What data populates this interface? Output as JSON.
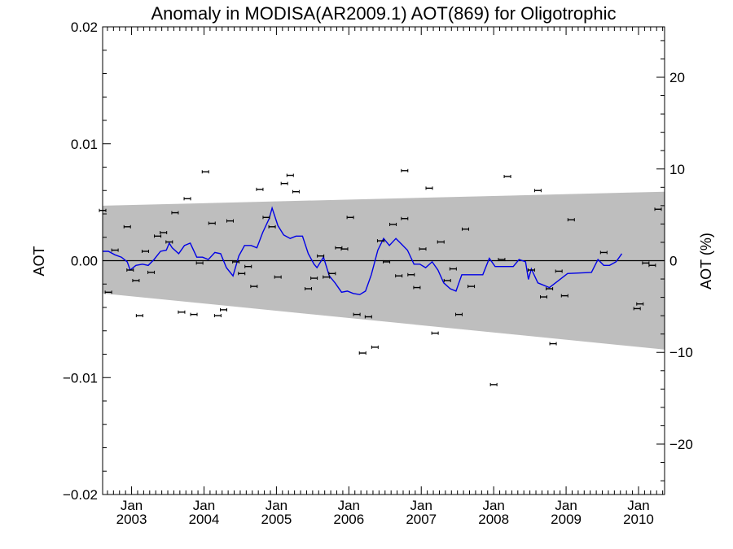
{
  "chart_data": {
    "type": "scatter",
    "title": "Anomaly in MODISA(AR2009.1) AOT(869) for Oligotrophic",
    "ylabel": "AOT",
    "y2label": "AOT (%)",
    "xlabel": "",
    "xlim": [
      2002.6,
      2010.36
    ],
    "ylim": [
      -0.02,
      0.02
    ],
    "y2lim": [
      -25.5,
      25.5
    ],
    "yticks": [
      {
        "value": -0.02,
        "label": "−0.02"
      },
      {
        "value": -0.01,
        "label": "−0.01"
      },
      {
        "value": 0.0,
        "label": "0.00"
      },
      {
        "value": 0.01,
        "label": "0.01"
      },
      {
        "value": 0.02,
        "label": "0.02"
      }
    ],
    "y2ticks": [
      {
        "value": -20,
        "label": "−20"
      },
      {
        "value": -10,
        "label": "−10"
      },
      {
        "value": 0,
        "label": "0"
      },
      {
        "value": 10,
        "label": "10"
      },
      {
        "value": 20,
        "label": "20"
      }
    ],
    "xticks": [
      {
        "value": 2003.0,
        "month": "Jan",
        "year": "2003"
      },
      {
        "value": 2004.0,
        "month": "Jan",
        "year": "2004"
      },
      {
        "value": 2005.0,
        "month": "Jan",
        "year": "2005"
      },
      {
        "value": 2006.0,
        "month": "Jan",
        "year": "2006"
      },
      {
        "value": 2007.0,
        "month": "Jan",
        "year": "2007"
      },
      {
        "value": 2008.0,
        "month": "Jan",
        "year": "2008"
      },
      {
        "value": 2009.0,
        "month": "Jan",
        "year": "2009"
      },
      {
        "value": 2010.0,
        "month": "Jan",
        "year": "2010"
      }
    ],
    "band": {
      "color": "#bebebe",
      "x": [
        2002.6,
        2010.36
      ],
      "upper": [
        0.0047,
        0.0059
      ],
      "lower": [
        -0.0028,
        -0.0076
      ]
    },
    "zero_line_color": "#000000",
    "series": [
      {
        "kind": "points",
        "color": "#000000",
        "points": [
          [
            2002.6,
            0.0043
          ],
          [
            2002.68,
            -0.0027
          ],
          [
            2002.77,
            0.0009
          ],
          [
            2002.94,
            0.0029
          ],
          [
            2002.98,
            -0.0008
          ],
          [
            2003.06,
            -0.0017
          ],
          [
            2003.11,
            -0.0047
          ],
          [
            2003.19,
            0.0008
          ],
          [
            2003.27,
            -0.001
          ],
          [
            2003.36,
            0.0021
          ],
          [
            2003.44,
            0.0024
          ],
          [
            2003.52,
            0.0016
          ],
          [
            2003.6,
            0.0041
          ],
          [
            2003.69,
            -0.0044
          ],
          [
            2003.77,
            0.0053
          ],
          [
            2003.86,
            -0.0046
          ],
          [
            2003.94,
            -0.0002
          ],
          [
            2004.02,
            0.0076
          ],
          [
            2004.11,
            0.0032
          ],
          [
            2004.19,
            -0.0047
          ],
          [
            2004.27,
            -0.0042
          ],
          [
            2004.36,
            0.0034
          ],
          [
            2004.44,
            -0.0001
          ],
          [
            2004.52,
            -0.0011
          ],
          [
            2004.61,
            -0.0005
          ],
          [
            2004.69,
            -0.0022
          ],
          [
            2004.77,
            0.0061
          ],
          [
            2004.86,
            0.0037
          ],
          [
            2004.94,
            0.0029
          ],
          [
            2005.02,
            -0.0014
          ],
          [
            2005.11,
            0.0066
          ],
          [
            2005.19,
            0.0073
          ],
          [
            2005.27,
            0.0059
          ],
          [
            2005.44,
            -0.0024
          ],
          [
            2005.52,
            -0.0015
          ],
          [
            2005.61,
            0.0004
          ],
          [
            2005.69,
            -0.0014
          ],
          [
            2005.77,
            -0.0011
          ],
          [
            2005.86,
            0.0011
          ],
          [
            2005.94,
            0.001
          ],
          [
            2006.02,
            0.0037
          ],
          [
            2006.11,
            -0.0046
          ],
          [
            2006.19,
            -0.0079
          ],
          [
            2006.27,
            -0.0048
          ],
          [
            2006.36,
            -0.0074
          ],
          [
            2006.44,
            0.0017
          ],
          [
            2006.52,
            -0.0001
          ],
          [
            2006.61,
            0.0031
          ],
          [
            2006.69,
            -0.0013
          ],
          [
            2006.77,
            0.0036
          ],
          [
            2006.77,
            0.0077
          ],
          [
            2006.86,
            -0.0012
          ],
          [
            2006.94,
            -0.0023
          ],
          [
            2007.02,
            0.001
          ],
          [
            2007.11,
            0.0062
          ],
          [
            2007.19,
            -0.0062
          ],
          [
            2007.27,
            0.0016
          ],
          [
            2007.36,
            -0.0017
          ],
          [
            2007.44,
            -0.0007
          ],
          [
            2007.52,
            -0.0046
          ],
          [
            2007.61,
            0.0027
          ],
          [
            2007.69,
            -0.0022
          ],
          [
            2008.0,
            -0.0106
          ],
          [
            2008.11,
            0.0001
          ],
          [
            2008.19,
            0.0072
          ],
          [
            2008.52,
            -0.0008
          ],
          [
            2008.61,
            0.006
          ],
          [
            2008.69,
            -0.0031
          ],
          [
            2008.77,
            -0.0024
          ],
          [
            2008.82,
            -0.0071
          ],
          [
            2008.9,
            -0.0009
          ],
          [
            2008.98,
            -0.003
          ],
          [
            2009.07,
            0.0035
          ],
          [
            2009.52,
            0.0007
          ],
          [
            2009.98,
            -0.0041
          ],
          [
            2010.02,
            -0.0037
          ],
          [
            2010.1,
            -0.0002
          ],
          [
            2010.19,
            -0.0004
          ],
          [
            2010.27,
            0.0044
          ]
        ]
      },
      {
        "kind": "line",
        "color": "#0000e6",
        "points": [
          [
            2002.6,
            0.0008
          ],
          [
            2002.68,
            0.0008
          ],
          [
            2002.77,
            0.0005
          ],
          [
            2002.86,
            0.0003
          ],
          [
            2002.94,
            -0.0001
          ],
          [
            2002.98,
            -0.0008
          ],
          [
            2003.06,
            -0.0004
          ],
          [
            2003.15,
            -0.0003
          ],
          [
            2003.23,
            -0.0004
          ],
          [
            2003.31,
            0.0001
          ],
          [
            2003.4,
            0.0008
          ],
          [
            2003.48,
            0.0009
          ],
          [
            2003.52,
            0.0015
          ],
          [
            2003.56,
            0.0011
          ],
          [
            2003.65,
            0.0006
          ],
          [
            2003.73,
            0.0013
          ],
          [
            2003.81,
            0.0015
          ],
          [
            2003.9,
            0.0003
          ],
          [
            2003.98,
            0.0003
          ],
          [
            2004.06,
            0.0001
          ],
          [
            2004.15,
            0.0007
          ],
          [
            2004.23,
            0.0006
          ],
          [
            2004.31,
            -0.0006
          ],
          [
            2004.4,
            -0.0013
          ],
          [
            2004.48,
            0.0004
          ],
          [
            2004.56,
            0.0013
          ],
          [
            2004.65,
            0.0013
          ],
          [
            2004.73,
            0.0011
          ],
          [
            2004.81,
            0.0024
          ],
          [
            2004.9,
            0.0036
          ],
          [
            2004.94,
            0.0045
          ],
          [
            2005.02,
            0.003
          ],
          [
            2005.1,
            0.0022
          ],
          [
            2005.19,
            0.0019
          ],
          [
            2005.27,
            0.0021
          ],
          [
            2005.36,
            0.0021
          ],
          [
            2005.44,
            0.0006
          ],
          [
            2005.52,
            -0.0003
          ],
          [
            2005.56,
            -0.0006
          ],
          [
            2005.65,
            0.0003
          ],
          [
            2005.73,
            -0.0013
          ],
          [
            2005.81,
            -0.0019
          ],
          [
            2005.9,
            -0.0027
          ],
          [
            2005.98,
            -0.0026
          ],
          [
            2006.06,
            -0.0028
          ],
          [
            2006.15,
            -0.0029
          ],
          [
            2006.23,
            -0.0026
          ],
          [
            2006.31,
            -0.0012
          ],
          [
            2006.4,
            0.0009
          ],
          [
            2006.48,
            0.0019
          ],
          [
            2006.56,
            0.0013
          ],
          [
            2006.65,
            0.0019
          ],
          [
            2006.73,
            0.0014
          ],
          [
            2006.81,
            0.0009
          ],
          [
            2006.9,
            -0.0003
          ],
          [
            2006.98,
            -0.0003
          ],
          [
            2007.06,
            -0.0006
          ],
          [
            2007.15,
            -0.0001
          ],
          [
            2007.23,
            -0.0008
          ],
          [
            2007.31,
            -0.0019
          ],
          [
            2007.4,
            -0.0024
          ],
          [
            2007.48,
            -0.0026
          ],
          [
            2007.56,
            -0.0012
          ],
          [
            2007.85,
            -0.0012
          ],
          [
            2007.94,
            0.0002
          ],
          [
            2008.02,
            -0.0005
          ],
          [
            2008.27,
            -0.0005
          ],
          [
            2008.35,
            0.0001
          ],
          [
            2008.44,
            -0.0001
          ],
          [
            2008.48,
            -0.0016
          ],
          [
            2008.52,
            -0.0007
          ],
          [
            2008.61,
            -0.0019
          ],
          [
            2008.69,
            -0.0021
          ],
          [
            2008.77,
            -0.0023
          ],
          [
            2009.02,
            -0.0011
          ],
          [
            2009.35,
            -0.001
          ],
          [
            2009.44,
            0.0001
          ],
          [
            2009.52,
            -0.0004
          ],
          [
            2009.6,
            -0.0004
          ],
          [
            2009.69,
            -0.0001
          ],
          [
            2009.77,
            0.0006
          ]
        ]
      }
    ]
  }
}
